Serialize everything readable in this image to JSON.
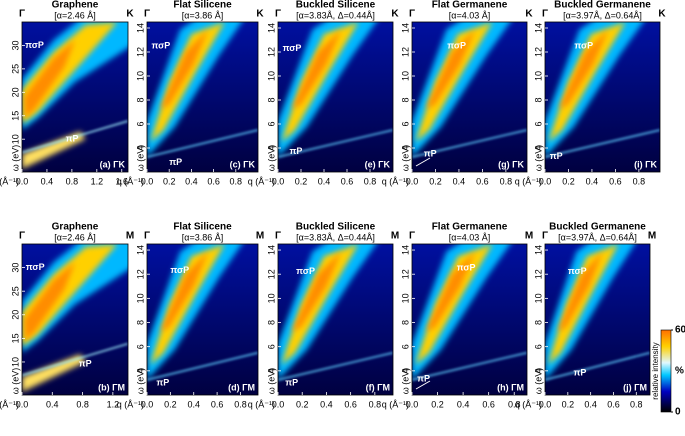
{
  "chart_data": [
    {
      "type": "heatmap",
      "kind": "graphene",
      "title": "Graphene",
      "subtitle": "[α=2.46 Å]",
      "start_label": "Γ",
      "end_label": "K",
      "panel_label": "(a) ΓK",
      "xlabel": "q (Å⁻¹)",
      "ylabel": "ω (eV)",
      "xlim": [
        0,
        1.7
      ],
      "xticks": [
        {
          "value": 0,
          "label": "0.0"
        },
        0.4,
        0.8,
        1.2,
        1.6
      ],
      "ylim": [
        3,
        35
      ],
      "yticks": [
        10,
        15,
        20,
        25,
        30
      ],
      "annotations": [
        {
          "text": "πσP",
          "x": 0.05,
          "y": 30
        },
        {
          "text": "πP",
          "x": 0.7,
          "y": 10
        }
      ]
    },
    {
      "type": "heatmap",
      "kind": "silicene",
      "title": "Flat Silicene",
      "subtitle": "[α=3.86 Å]",
      "start_label": "Γ",
      "end_label": "K",
      "panel_label": "(c) ΓK",
      "xlabel": "q (Å⁻¹)",
      "ylabel": "ω (eV)",
      "xlim": [
        0,
        1.0
      ],
      "xticks": [
        {
          "value": 0,
          "label": "0.0"
        },
        0.2,
        0.4,
        0.6,
        0.8
      ],
      "ylim": [
        2,
        14.5
      ],
      "yticks": [
        4,
        6,
        8,
        10,
        12,
        14
      ],
      "annotations": [
        {
          "text": "πσP",
          "x": 0.04,
          "y": 12.5
        },
        {
          "text": "πP",
          "x": 0.2,
          "y": 2.8
        }
      ]
    },
    {
      "type": "heatmap",
      "kind": "silicene",
      "title": "Buckled Silicene",
      "subtitle": "[α=3.83Å, Δ=0.44Å]",
      "start_label": "Γ",
      "end_label": "K",
      "panel_label": "(e) ΓK",
      "xlabel": "q (Å⁻¹)",
      "ylabel": "ω (eV)",
      "xlim": [
        0,
        1.0
      ],
      "xticks": [
        {
          "value": 0,
          "label": "0.0"
        },
        0.2,
        0.4,
        0.6,
        0.8
      ],
      "ylim": [
        2,
        14.5
      ],
      "yticks": [
        4,
        6,
        8,
        10,
        12,
        14
      ],
      "annotations": [
        {
          "text": "πσP",
          "x": 0.04,
          "y": 12.3
        },
        {
          "text": "πP",
          "x": 0.1,
          "y": 3.7
        }
      ]
    },
    {
      "type": "heatmap",
      "kind": "germanene",
      "title": "Flat Germanene",
      "subtitle": "[α=4.03 Å]",
      "start_label": "Γ",
      "end_label": "K",
      "panel_label": "(g) ΓK",
      "xlabel": "q (Å⁻¹)",
      "ylabel": "ω (eV)",
      "xlim": [
        0,
        0.98
      ],
      "xticks": [
        {
          "value": 0,
          "label": "0.0"
        },
        0.2,
        0.4,
        0.6,
        0.8
      ],
      "ylim": [
        2,
        14.5
      ],
      "yticks": [
        4,
        6,
        8,
        10,
        12,
        14
      ],
      "annotations": [
        {
          "text": "πσP",
          "x": 0.3,
          "y": 12.5
        },
        {
          "text": "πP",
          "x": 0.1,
          "y": 3.5
        }
      ]
    },
    {
      "type": "heatmap",
      "kind": "germanene",
      "title": "Buckled Germanene",
      "subtitle": "[α=3.97Å, Δ=0.64Å]",
      "start_label": "Γ",
      "end_label": "K",
      "panel_label": "(i) ΓK",
      "xlabel": "q (Å⁻¹)",
      "ylabel": "ω (eV)",
      "xlim": [
        0,
        0.98
      ],
      "xticks": [
        {
          "value": 0,
          "label": "0.0"
        },
        0.2,
        0.4,
        0.6,
        0.8
      ],
      "ylim": [
        2,
        14.5
      ],
      "yticks": [
        4,
        6,
        8,
        10,
        12,
        14
      ],
      "annotations": [
        {
          "text": "πσP",
          "x": 0.25,
          "y": 12.5
        },
        {
          "text": "πP",
          "x": 0.04,
          "y": 3.3
        }
      ]
    },
    {
      "type": "heatmap",
      "kind": "graphene",
      "title": "Graphene",
      "subtitle": "[α=2.46 Å]",
      "start_label": "Γ",
      "end_label": "M",
      "panel_label": "(b) ΓM",
      "xlabel": "q (Å⁻¹)",
      "ylabel": "ω (eV)",
      "xlim": [
        0,
        1.4
      ],
      "xticks": [
        {
          "value": 0,
          "label": "0.0"
        },
        0.4,
        0.8,
        1.2
      ],
      "ylim": [
        3,
        35
      ],
      "yticks": [
        10,
        15,
        20,
        25,
        30
      ],
      "annotations": [
        {
          "text": "πσP",
          "x": 0.05,
          "y": 30
        },
        {
          "text": "πP",
          "x": 0.75,
          "y": 9.5
        }
      ]
    },
    {
      "type": "heatmap",
      "kind": "silicene",
      "title": "Flat Silicene",
      "subtitle": "[α=3.86 Å]",
      "start_label": "Γ",
      "end_label": "M",
      "panel_label": "(d) ΓM",
      "xlabel": "q (Å⁻¹)",
      "ylabel": "ω (eV)",
      "xlim": [
        0,
        0.95
      ],
      "xticks": [
        {
          "value": 0,
          "label": "0.0"
        },
        0.2,
        0.4,
        0.6,
        0.8
      ],
      "ylim": [
        2,
        14.5
      ],
      "yticks": [
        4,
        6,
        8,
        10,
        12,
        14
      ],
      "annotations": [
        {
          "text": "πσP",
          "x": 0.2,
          "y": 12.3
        },
        {
          "text": "πP",
          "x": 0.08,
          "y": 3
        }
      ]
    },
    {
      "type": "heatmap",
      "kind": "silicene",
      "title": "Buckled Silicene",
      "subtitle": "[α=3.83Å, Δ=0.44Å]",
      "start_label": "Γ",
      "end_label": "M",
      "panel_label": "(f) ΓM",
      "xlabel": "q (Å⁻¹)",
      "ylabel": "ω (eV)",
      "xlim": [
        0,
        0.95
      ],
      "xticks": [
        {
          "value": 0,
          "label": "0.0"
        },
        0.2,
        0.4,
        0.6,
        0.8
      ],
      "ylim": [
        2,
        14.5
      ],
      "yticks": [
        4,
        6,
        8,
        10,
        12,
        14
      ],
      "annotations": [
        {
          "text": "πσP",
          "x": 0.15,
          "y": 12.2
        },
        {
          "text": "πP",
          "x": 0.06,
          "y": 3
        }
      ]
    },
    {
      "type": "heatmap",
      "kind": "germanene",
      "title": "Flat Germanene",
      "subtitle": "[α=4.03 Å]",
      "start_label": "Γ",
      "end_label": "M",
      "panel_label": "(h) ΓM",
      "xlabel": "q (Å⁻¹)",
      "ylabel": "ω (eV)",
      "xlim": [
        0,
        0.9
      ],
      "xticks": [
        {
          "value": 0,
          "label": "0.0"
        },
        0.2,
        0.4,
        0.6,
        0.8
      ],
      "ylim": [
        2,
        14.5
      ],
      "yticks": [
        4,
        6,
        8,
        10,
        12,
        14
      ],
      "annotations": [
        {
          "text": "πσP",
          "x": 0.35,
          "y": 12.5
        },
        {
          "text": "πP",
          "x": 0.04,
          "y": 3.3
        }
      ]
    },
    {
      "type": "heatmap",
      "kind": "germanene",
      "title": "Buckled Germanene",
      "subtitle": "[α=3.97Å, Δ=0.64Å]",
      "start_label": "Γ",
      "end_label": "M",
      "panel_label": "(j) ΓM",
      "xlabel": "q (Å⁻¹)",
      "ylabel": "ω (eV)",
      "xlim": [
        0,
        0.92
      ],
      "xticks": [
        {
          "value": 0,
          "label": "0.0"
        },
        0.2,
        0.4,
        0.6,
        0.8
      ],
      "ylim": [
        2,
        14.5
      ],
      "yticks": [
        4,
        6,
        8,
        10,
        12,
        14
      ],
      "annotations": [
        {
          "text": "πσP",
          "x": 0.2,
          "y": 12.2
        },
        {
          "text": "πP",
          "x": 0.25,
          "y": 3.8
        }
      ]
    }
  ],
  "colorbar": {
    "lim": [
      0,
      60
    ],
    "ticks": [
      0,
      60
    ],
    "unit": "%",
    "label": "relative intensity"
  }
}
